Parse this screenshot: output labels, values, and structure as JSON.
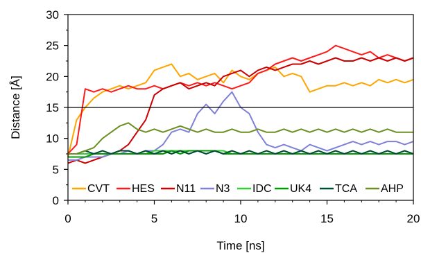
{
  "chart_data": {
    "type": "line",
    "title": "",
    "xlabel": "Time [ns]",
    "ylabel": "Distance [Å]",
    "xlim": [
      0,
      20
    ],
    "ylim": [
      0,
      30
    ],
    "x_ticks": [
      0,
      5,
      10,
      15,
      20
    ],
    "y_ticks": [
      0,
      5,
      10,
      15,
      20,
      25,
      30
    ],
    "grid": false,
    "legend_position": "bottom",
    "reference_line": 15,
    "x": [
      0,
      0.5,
      1,
      1.5,
      2,
      2.5,
      3,
      3.5,
      4,
      4.5,
      5,
      5.5,
      6,
      6.5,
      7,
      7.5,
      8,
      8.5,
      9,
      9.5,
      10,
      10.5,
      11,
      11.5,
      12,
      12.5,
      13,
      13.5,
      14,
      14.5,
      15,
      15.5,
      16,
      16.5,
      17,
      17.5,
      18,
      18.5,
      19,
      19.5,
      20
    ],
    "series": [
      {
        "name": "CVT",
        "color": "#ffa500",
        "values": [
          7.0,
          13.0,
          15.0,
          16.5,
          17.5,
          18.0,
          18.5,
          18.0,
          18.5,
          19.0,
          21.0,
          21.5,
          22.0,
          20.0,
          20.5,
          19.5,
          20.0,
          20.5,
          19.0,
          21.0,
          20.0,
          19.5,
          20.5,
          21.0,
          21.5,
          20.0,
          20.5,
          20.0,
          17.5,
          18.0,
          18.5,
          18.5,
          19.0,
          18.5,
          19.0,
          18.5,
          19.5,
          19.0,
          19.5,
          19.0,
          19.5
        ]
      },
      {
        "name": "HES",
        "color": "#ff1a1a",
        "values": [
          7.5,
          9.0,
          18.0,
          17.5,
          18.0,
          17.5,
          18.0,
          18.5,
          18.0,
          18.0,
          18.5,
          18.0,
          18.5,
          19.0,
          18.5,
          19.0,
          18.5,
          19.0,
          18.5,
          18.0,
          18.5,
          19.0,
          20.5,
          21.0,
          22.0,
          22.5,
          23.0,
          22.5,
          23.0,
          23.5,
          24.0,
          25.0,
          24.5,
          24.0,
          23.5,
          24.0,
          23.0,
          23.5,
          23.0,
          22.5,
          23.0
        ]
      },
      {
        "name": "N11",
        "color": "#cc0000",
        "values": [
          6.0,
          6.5,
          6.0,
          6.5,
          7.0,
          7.5,
          8.0,
          9.0,
          11.0,
          13.0,
          17.0,
          18.0,
          18.5,
          19.0,
          18.0,
          18.5,
          19.0,
          18.5,
          20.0,
          20.5,
          21.0,
          20.0,
          21.0,
          21.5,
          21.0,
          21.5,
          22.0,
          22.0,
          22.5,
          22.0,
          22.5,
          23.0,
          22.5,
          22.5,
          23.0,
          22.5,
          23.0,
          22.5,
          23.0,
          22.5,
          23.0
        ]
      },
      {
        "name": "N3",
        "color": "#8080d8",
        "values": [
          6.5,
          6.5,
          7.0,
          7.0,
          7.0,
          7.5,
          7.5,
          8.0,
          7.5,
          8.0,
          8.0,
          9.0,
          11.0,
          11.5,
          11.0,
          14.0,
          15.5,
          14.0,
          16.0,
          17.5,
          15.0,
          14.0,
          11.0,
          9.0,
          8.5,
          9.0,
          8.5,
          8.0,
          9.0,
          8.5,
          8.0,
          8.5,
          9.0,
          9.5,
          9.0,
          9.5,
          9.0,
          9.5,
          9.5,
          9.0,
          9.5
        ]
      },
      {
        "name": "IDC",
        "color": "#33cc33",
        "values": [
          7.5,
          7.5,
          7.5,
          7.5,
          7.5,
          7.5,
          7.5,
          7.5,
          7.5,
          7.5,
          8.0,
          8.0,
          8.0,
          8.0,
          8.0,
          8.0,
          8.0,
          8.0,
          8.0,
          7.5,
          7.5,
          7.5,
          7.5,
          7.5,
          7.5,
          7.5,
          7.5,
          7.5,
          7.5,
          7.5,
          7.5,
          7.5,
          7.5,
          7.5,
          7.5,
          7.5,
          7.5,
          7.5,
          7.5,
          7.5,
          7.5
        ]
      },
      {
        "name": "UK4",
        "color": "#009900",
        "values": [
          7.0,
          7.0,
          7.0,
          7.5,
          7.5,
          7.5,
          7.5,
          7.5,
          7.5,
          7.5,
          7.5,
          7.5,
          8.0,
          7.5,
          8.0,
          8.0,
          8.0,
          8.0,
          7.5,
          7.5,
          7.5,
          7.5,
          7.5,
          7.5,
          7.5,
          7.5,
          7.5,
          7.5,
          7.5,
          7.5,
          7.5,
          7.5,
          7.5,
          7.5,
          7.5,
          7.5,
          7.5,
          7.5,
          7.5,
          7.5,
          7.5
        ]
      },
      {
        "name": "TCA",
        "color": "#004d33",
        "values": [
          7.5,
          7.5,
          8.0,
          7.5,
          8.0,
          7.5,
          8.0,
          8.0,
          7.5,
          8.0,
          7.5,
          8.0,
          7.5,
          8.0,
          7.5,
          8.0,
          7.5,
          8.0,
          7.5,
          8.0,
          7.5,
          8.0,
          7.5,
          8.0,
          7.5,
          8.0,
          7.5,
          8.0,
          7.5,
          8.0,
          7.5,
          8.0,
          7.5,
          8.0,
          7.5,
          8.0,
          7.5,
          8.0,
          7.5,
          8.0,
          7.5
        ]
      },
      {
        "name": "AHP",
        "color": "#6b8e23",
        "values": [
          7.5,
          7.5,
          8.0,
          8.5,
          10.0,
          11.0,
          12.0,
          12.5,
          11.5,
          11.0,
          11.5,
          11.0,
          11.5,
          12.0,
          11.5,
          11.0,
          11.5,
          11.0,
          11.0,
          11.5,
          11.0,
          11.0,
          11.5,
          11.0,
          11.0,
          11.5,
          11.0,
          11.5,
          11.0,
          11.5,
          11.0,
          11.5,
          11.0,
          11.5,
          11.0,
          11.5,
          11.0,
          11.5,
          11.0,
          11.0,
          11.0
        ]
      }
    ]
  }
}
